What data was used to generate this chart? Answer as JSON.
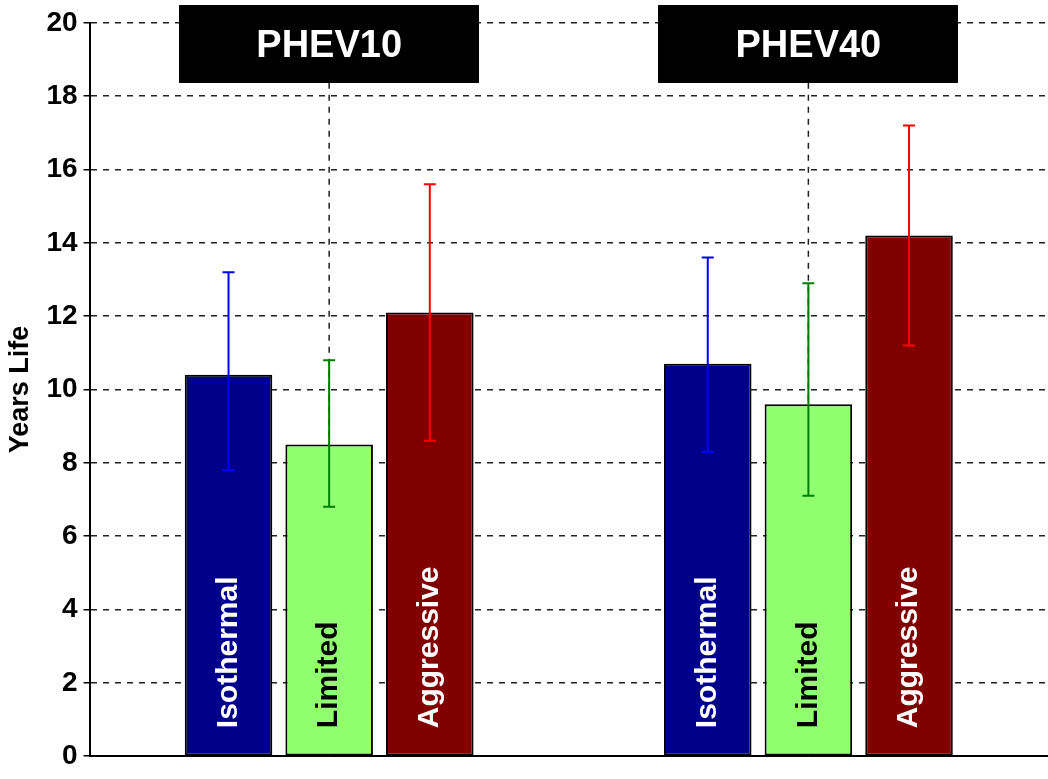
{
  "chart_data": {
    "type": "bar",
    "ylabel": "Years Life",
    "categories": [
      "PHEV10",
      "PHEV40"
    ],
    "series": [
      {
        "name": "Isothermal",
        "color": "#00008b",
        "values": [
          10.4,
          10.7
        ],
        "errors": [
          [
            7.8,
            13.2
          ],
          [
            8.3,
            13.6
          ]
        ]
      },
      {
        "name": "Limited",
        "color": "#90ff70",
        "values": [
          8.5,
          9.6
        ],
        "errors": [
          [
            6.8,
            10.8
          ],
          [
            7.1,
            12.9
          ]
        ]
      },
      {
        "name": "Aggressive",
        "color": "#800000",
        "values": [
          12.1,
          14.2
        ],
        "errors": [
          [
            8.6,
            15.6
          ],
          [
            11.2,
            17.2
          ]
        ]
      }
    ],
    "ylim": [
      0,
      20
    ],
    "yticks": [
      0,
      2,
      4,
      6,
      8,
      10,
      12,
      14,
      16,
      18,
      20
    ],
    "grid": true,
    "legend": false
  }
}
